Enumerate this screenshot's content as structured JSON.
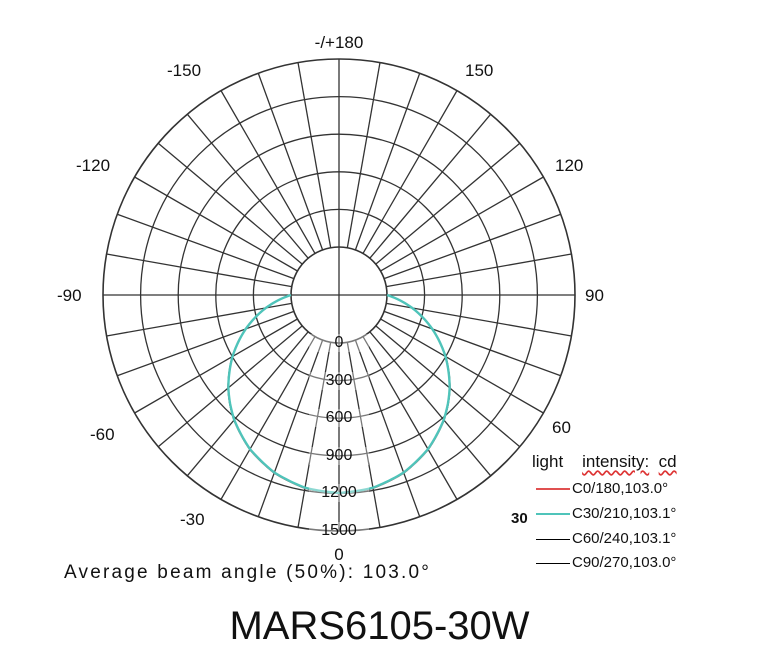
{
  "chart_data": {
    "type": "polar",
    "title": "MARS6105-30W",
    "radial_unit": "cd",
    "radial_ticks": [
      0,
      300,
      600,
      900,
      1200,
      1500
    ],
    "radial_max": 1500,
    "angle_labels": {
      "top": "-/+180",
      "left": [
        "150",
        "120",
        "90",
        "60",
        "30"
      ],
      "right": [
        "150",
        "120",
        "90",
        "60",
        "30"
      ],
      "bottom": "0"
    },
    "legend_title_parts": [
      "light",
      "intensity:",
      "cd"
    ],
    "series": [
      {
        "name": "C0/180,103.0°",
        "color": "#e05050",
        "beam_angle": 103.0,
        "peak": 1200
      },
      {
        "name": "C30/210,103.1°",
        "color": "#4fc4ba",
        "beam_angle": 103.1,
        "peak": 1200
      },
      {
        "name": "C60/240,103.1°",
        "color": "#000000",
        "beam_angle": 103.1,
        "peak": 1200
      },
      {
        "name": "C90/270,103.0°",
        "color": "#000000",
        "beam_angle": 103.0,
        "peak": 1200
      }
    ],
    "curve": {
      "angles": [
        0,
        10,
        20,
        30,
        40,
        45,
        50,
        60,
        70,
        80,
        90
      ],
      "values": [
        1200,
        1182,
        1128,
        1040,
        920,
        848,
        772,
        600,
        410,
        210,
        0
      ]
    },
    "grid": true
  },
  "beam_note": "Average beam angle (50%): 103.0°",
  "model_title": "MARS6105-30W"
}
